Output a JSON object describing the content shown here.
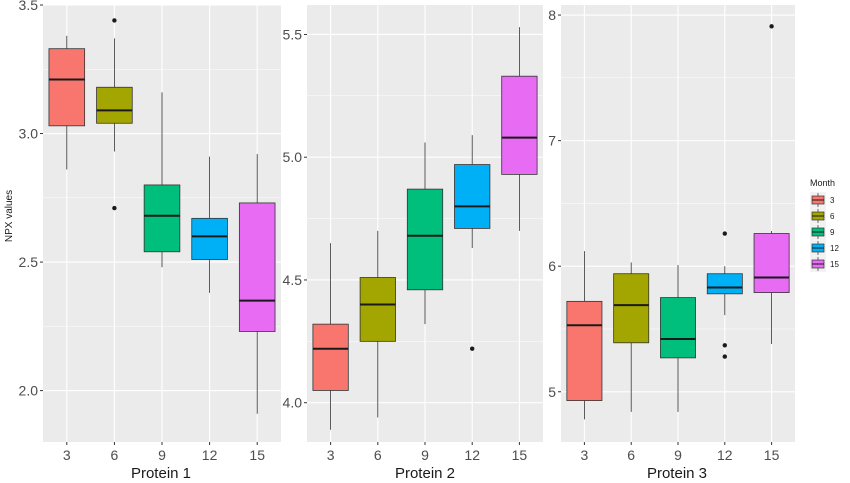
{
  "chart_data": {
    "type": "boxplot",
    "ylabel": "NPX values",
    "legend": {
      "title": "Month",
      "position": "right",
      "entries": [
        {
          "label": "3",
          "color": "#F8766D"
        },
        {
          "label": "6",
          "color": "#A3A500"
        },
        {
          "label": "9",
          "color": "#00BF7D"
        },
        {
          "label": "12",
          "color": "#00B0F6"
        },
        {
          "label": "15",
          "color": "#E76BF3"
        }
      ]
    },
    "panels": [
      {
        "xlabel": "Protein 1",
        "categories": [
          "3",
          "6",
          "9",
          "12",
          "15"
        ],
        "ylim": [
          1.8,
          3.5
        ],
        "yticks": [
          "2.0",
          "2.5",
          "3.0",
          "3.5"
        ],
        "boxes": [
          {
            "month": "3",
            "min": 2.86,
            "q1": 3.03,
            "median": 3.21,
            "q3": 3.33,
            "max": 3.38,
            "outliers": []
          },
          {
            "month": "6",
            "min": 2.93,
            "q1": 3.04,
            "median": 3.09,
            "q3": 3.18,
            "max": 3.37,
            "outliers": [
              3.44,
              2.71
            ]
          },
          {
            "month": "9",
            "min": 2.48,
            "q1": 2.54,
            "median": 2.68,
            "q3": 2.8,
            "max": 3.16,
            "outliers": []
          },
          {
            "month": "12",
            "min": 2.38,
            "q1": 2.51,
            "median": 2.6,
            "q3": 2.67,
            "max": 2.91,
            "outliers": []
          },
          {
            "month": "15",
            "min": 1.91,
            "q1": 2.23,
            "median": 2.35,
            "q3": 2.73,
            "max": 2.92,
            "outliers": []
          }
        ]
      },
      {
        "xlabel": "Protein 2",
        "categories": [
          "3",
          "6",
          "9",
          "12",
          "15"
        ],
        "ylim": [
          3.84,
          5.62
        ],
        "yticks": [
          "4.0",
          "4.5",
          "5.0",
          "5.5"
        ],
        "boxes": [
          {
            "month": "3",
            "min": 3.89,
            "q1": 4.05,
            "median": 4.22,
            "q3": 4.32,
            "max": 4.65,
            "outliers": []
          },
          {
            "month": "6",
            "min": 3.94,
            "q1": 4.25,
            "median": 4.4,
            "q3": 4.51,
            "max": 4.7,
            "outliers": []
          },
          {
            "month": "9",
            "min": 4.32,
            "q1": 4.46,
            "median": 4.68,
            "q3": 4.87,
            "max": 5.06,
            "outliers": []
          },
          {
            "month": "12",
            "min": 4.63,
            "q1": 4.71,
            "median": 4.8,
            "q3": 4.97,
            "max": 5.09,
            "outliers": [
              4.22
            ]
          },
          {
            "month": "15",
            "min": 4.7,
            "q1": 4.93,
            "median": 5.08,
            "q3": 5.33,
            "max": 5.53,
            "outliers": []
          }
        ]
      },
      {
        "xlabel": "Protein 3",
        "categories": [
          "3",
          "6",
          "9",
          "12",
          "15"
        ],
        "ylim": [
          4.6,
          8.08
        ],
        "yticks": [
          "5",
          "6",
          "7",
          "8"
        ],
        "boxes": [
          {
            "month": "3",
            "min": 4.78,
            "q1": 4.93,
            "median": 5.53,
            "q3": 5.72,
            "max": 6.12,
            "outliers": []
          },
          {
            "month": "6",
            "min": 4.84,
            "q1": 5.39,
            "median": 5.69,
            "q3": 5.94,
            "max": 6.03,
            "outliers": []
          },
          {
            "month": "9",
            "min": 4.84,
            "q1": 5.27,
            "median": 5.42,
            "q3": 5.75,
            "max": 6.01,
            "outliers": []
          },
          {
            "month": "12",
            "min": 5.61,
            "q1": 5.78,
            "median": 5.83,
            "q3": 5.94,
            "max": 6.0,
            "outliers": [
              6.26,
              5.37,
              5.28
            ]
          },
          {
            "month": "15",
            "min": 5.38,
            "q1": 5.79,
            "median": 5.91,
            "q3": 6.26,
            "max": 6.28,
            "outliers": [
              7.91
            ]
          }
        ]
      }
    ]
  }
}
